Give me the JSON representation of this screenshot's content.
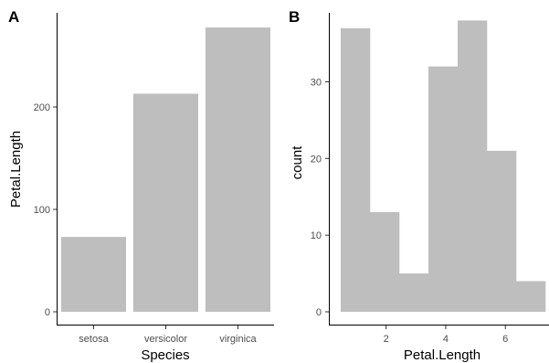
{
  "chart_data": [
    {
      "panel": "A",
      "type": "bar",
      "categories": [
        "setosa",
        "versicolor",
        "virginica"
      ],
      "values": [
        73.1,
        213.0,
        277.6
      ],
      "xlabel": "Species",
      "ylabel": "Petal.Length",
      "ylim": [
        0,
        292
      ],
      "yticks": [
        0,
        100,
        200
      ],
      "bar_color": "#bebebe",
      "grid": false
    },
    {
      "panel": "B",
      "type": "bar",
      "subtype": "histogram",
      "bins": [
        {
          "x0": 0.48,
          "x1": 1.46,
          "count": 37
        },
        {
          "x0": 1.46,
          "x1": 2.44,
          "count": 13
        },
        {
          "x0": 2.44,
          "x1": 3.42,
          "count": 5
        },
        {
          "x0": 3.42,
          "x1": 4.4,
          "count": 32
        },
        {
          "x0": 4.4,
          "x1": 5.38,
          "count": 38
        },
        {
          "x0": 5.38,
          "x1": 6.36,
          "count": 21
        },
        {
          "x0": 6.36,
          "x1": 7.34,
          "count": 4
        }
      ],
      "xlabel": "Petal.Length",
      "ylabel": "count",
      "xlim": [
        0.48,
        7.34
      ],
      "ylim": [
        0,
        39
      ],
      "xticks": [
        2,
        4,
        6
      ],
      "yticks": [
        0,
        10,
        20,
        30
      ],
      "bar_color": "#bebebe",
      "grid": false
    }
  ]
}
